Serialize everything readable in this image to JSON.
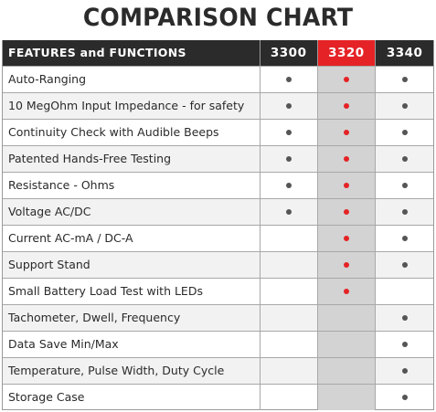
{
  "title": "COMPARISON CHART",
  "header": {
    "features": "FEATURES and FUNCTIONS",
    "models": [
      "3300",
      "3320",
      "3340"
    ],
    "highlight_index": 1
  },
  "colors": {
    "header_bg": "#2b2b2b",
    "highlight_header": "#e52326",
    "highlight_column": "#d3d3d3",
    "dot": "#555555",
    "highlight_dot": "#e52326"
  },
  "rows": [
    {
      "feature": "Auto-Ranging",
      "checks": [
        true,
        true,
        true
      ]
    },
    {
      "feature": "10 MegOhm Input Impedance - for safety",
      "checks": [
        true,
        true,
        true
      ]
    },
    {
      "feature": "Continuity Check with Audible Beeps",
      "checks": [
        true,
        true,
        true
      ]
    },
    {
      "feature": "Patented Hands-Free Testing",
      "checks": [
        true,
        true,
        true
      ]
    },
    {
      "feature": "Resistance - Ohms",
      "checks": [
        true,
        true,
        true
      ]
    },
    {
      "feature": "Voltage AC/DC",
      "checks": [
        true,
        true,
        true
      ]
    },
    {
      "feature": "Current AC-mA / DC-A",
      "checks": [
        false,
        true,
        true
      ]
    },
    {
      "feature": "Support Stand",
      "checks": [
        false,
        true,
        true
      ]
    },
    {
      "feature": "Small Battery Load Test with LEDs",
      "checks": [
        false,
        true,
        false
      ]
    },
    {
      "feature": "Tachometer, Dwell, Frequency",
      "checks": [
        false,
        false,
        true
      ]
    },
    {
      "feature": "Data Save Min/Max",
      "checks": [
        false,
        false,
        true
      ]
    },
    {
      "feature": "Temperature, Pulse Width, Duty Cycle",
      "checks": [
        false,
        false,
        true
      ]
    },
    {
      "feature": "Storage Case",
      "checks": [
        false,
        false,
        true
      ]
    }
  ]
}
